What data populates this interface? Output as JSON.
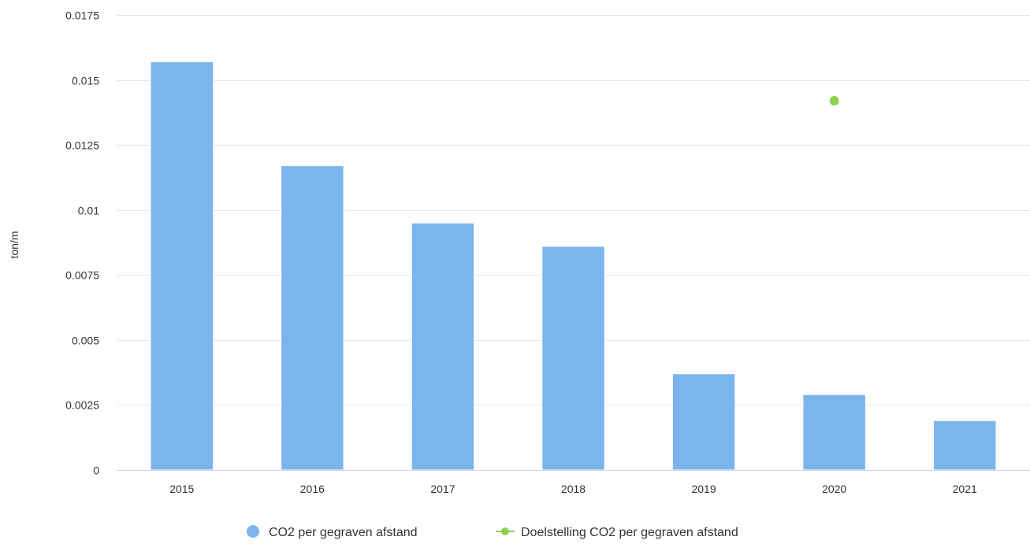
{
  "chart_data": {
    "type": "bar",
    "ylabel": "ton/m",
    "xlabel": "",
    "ylim": [
      0,
      0.0175
    ],
    "y_ticks": [
      "0",
      "0.0025",
      "0.005",
      "0.0075",
      "0.01",
      "0.0125",
      "0.015",
      "0.0175"
    ],
    "y_tick_values": [
      0,
      0.0025,
      0.005,
      0.0075,
      0.01,
      0.0125,
      0.015,
      0.0175
    ],
    "categories": [
      "2015",
      "2016",
      "2017",
      "2018",
      "2019",
      "2020",
      "2021"
    ],
    "grid": true,
    "legend_position": "bottom-center",
    "series": [
      {
        "name": "CO2 per gegraven afstand",
        "type": "bar",
        "color": "#7cb5ec",
        "values": [
          0.0157,
          0.0117,
          0.0095,
          0.0086,
          0.0037,
          0.0029,
          0.0019
        ]
      },
      {
        "name": "Doelstelling CO2 per gegraven afstand",
        "type": "line",
        "color": "#90d04e",
        "values": [
          null,
          null,
          null,
          null,
          null,
          0.0142,
          null
        ]
      }
    ]
  }
}
